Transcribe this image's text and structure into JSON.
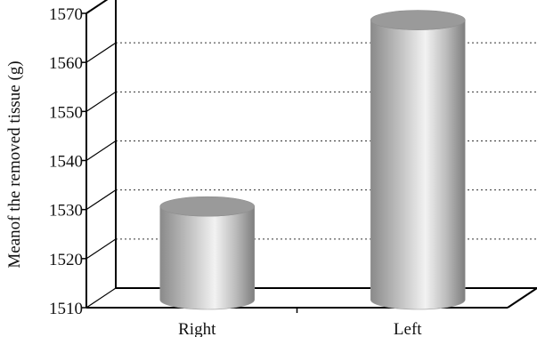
{
  "chart_data": {
    "type": "bar",
    "style": "3d-cylinder",
    "categories": [
      "Right",
      "Left"
    ],
    "values": [
      1529,
      1567
    ],
    "xlabel": "",
    "ylabel": "Meanof the removed tissue (g)",
    "ylim": [
      1510,
      1570
    ],
    "yticks": [
      1510,
      1520,
      1530,
      1540,
      1550,
      1560,
      1570
    ],
    "grid": true,
    "grid_style": "dotted",
    "legend": "none",
    "colors": {
      "bar_light": "#eeeeee",
      "bar_mid": "#bdbdbd",
      "bar_dark": "#8a8a8a",
      "bar_top": "#9a9a9a",
      "axis": "#000000",
      "grid": "#333333"
    }
  }
}
